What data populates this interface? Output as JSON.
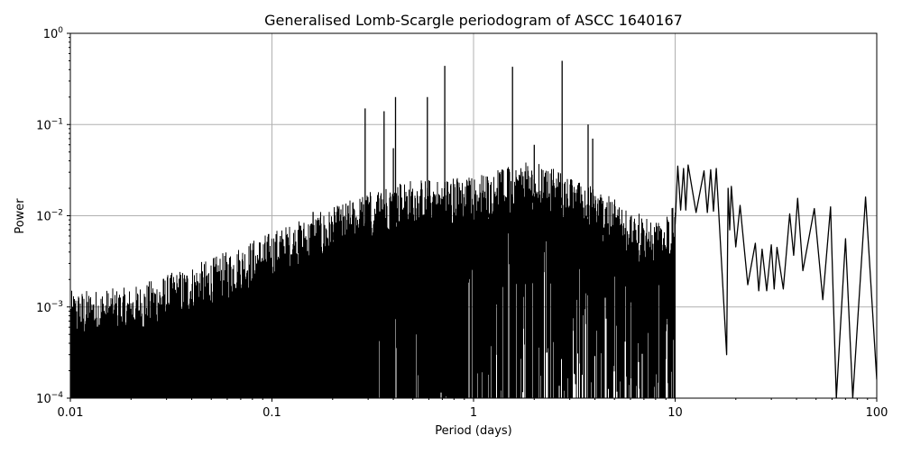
{
  "chart_data": {
    "type": "line",
    "title": "Generalised Lomb-Scargle periodogram of ASCC 1640167",
    "xlabel": "Period (days)",
    "ylabel": "Power",
    "xscale": "log",
    "yscale": "log",
    "xlim": [
      0.01,
      100
    ],
    "ylim": [
      0.0001,
      1
    ],
    "grid": true,
    "legend": null,
    "line_color": "#000000",
    "grid_color": "#b0b0b0",
    "x_ticks": [
      {
        "value": 0.01,
        "label": "0.01"
      },
      {
        "value": 0.1,
        "label": "0.1"
      },
      {
        "value": 1,
        "label": "1"
      },
      {
        "value": 10,
        "label": "10"
      },
      {
        "value": 100,
        "label": "100"
      }
    ],
    "y_ticks": [
      {
        "value": 1,
        "base": "10",
        "exp": "0"
      },
      {
        "value": 0.1,
        "base": "10",
        "exp": "−1"
      },
      {
        "value": 0.01,
        "base": "10",
        "exp": "−2"
      },
      {
        "value": 0.001,
        "base": "10",
        "exp": "−3"
      },
      {
        "value": 0.0001,
        "base": "10",
        "exp": "−4"
      }
    ],
    "noise_envelope": [
      {
        "period": 0.01,
        "power": 0.0011
      },
      {
        "period": 0.02,
        "power": 0.0012
      },
      {
        "period": 0.05,
        "power": 0.0025
      },
      {
        "period": 0.1,
        "power": 0.005
      },
      {
        "period": 0.2,
        "power": 0.009
      },
      {
        "period": 0.4,
        "power": 0.018
      },
      {
        "period": 1.0,
        "power": 0.02
      },
      {
        "period": 2.0,
        "power": 0.03
      },
      {
        "period": 4.0,
        "power": 0.015
      },
      {
        "period": 8.0,
        "power": 0.006
      },
      {
        "period": 10.0,
        "power": 0.01
      }
    ],
    "prominent_peaks": [
      {
        "period": 0.092,
        "power": 0.0032
      },
      {
        "period": 0.11,
        "power": 0.006
      },
      {
        "period": 0.135,
        "power": 0.007
      },
      {
        "period": 0.16,
        "power": 0.011
      },
      {
        "period": 0.2,
        "power": 0.008
      },
      {
        "period": 0.21,
        "power": 0.011
      },
      {
        "period": 0.225,
        "power": 0.009
      },
      {
        "period": 0.29,
        "power": 0.15
      },
      {
        "period": 0.36,
        "power": 0.14
      },
      {
        "period": 0.4,
        "power": 0.055
      },
      {
        "period": 0.41,
        "power": 0.2
      },
      {
        "period": 0.59,
        "power": 0.2
      },
      {
        "period": 0.72,
        "power": 0.44
      },
      {
        "period": 1.56,
        "power": 0.43
      },
      {
        "period": 2.0,
        "power": 0.06
      },
      {
        "period": 2.75,
        "power": 0.5
      },
      {
        "period": 3.7,
        "power": 0.1
      },
      {
        "period": 3.9,
        "power": 0.07
      }
    ],
    "long_period_lobes": [
      {
        "period": 10.3,
        "power": 0.035
      },
      {
        "period": 11.0,
        "power": 0.033
      },
      {
        "period": 11.6,
        "power": 0.036
      },
      {
        "period": 13.9,
        "power": 0.031
      },
      {
        "period": 15.0,
        "power": 0.032
      },
      {
        "period": 16.0,
        "power": 0.033
      },
      {
        "period": 18.3,
        "power": 0.02
      },
      {
        "period": 19.0,
        "power": 0.021
      },
      {
        "period": 21.0,
        "power": 0.013
      },
      {
        "period": 25.0,
        "power": 0.005
      },
      {
        "period": 27.0,
        "power": 0.0043
      },
      {
        "period": 30.0,
        "power": 0.0048
      },
      {
        "period": 32.0,
        "power": 0.0045
      },
      {
        "period": 37.0,
        "power": 0.0105
      },
      {
        "period": 40.5,
        "power": 0.0155
      },
      {
        "period": 49.0,
        "power": 0.012
      },
      {
        "period": 59.0,
        "power": 0.0125
      },
      {
        "period": 70.0,
        "power": 0.0056
      },
      {
        "period": 88.0,
        "power": 0.016
      }
    ],
    "long_period_minima": [
      {
        "period": 18.0,
        "power": 0.0003
      },
      {
        "period": 43.0,
        "power": 0.0025
      },
      {
        "period": 54.0,
        "power": 0.0012
      },
      {
        "period": 63.0,
        "power": 0.0001
      },
      {
        "period": 76.0,
        "power": 0.0001
      },
      {
        "period": 100.0,
        "power": 0.00016
      }
    ]
  }
}
